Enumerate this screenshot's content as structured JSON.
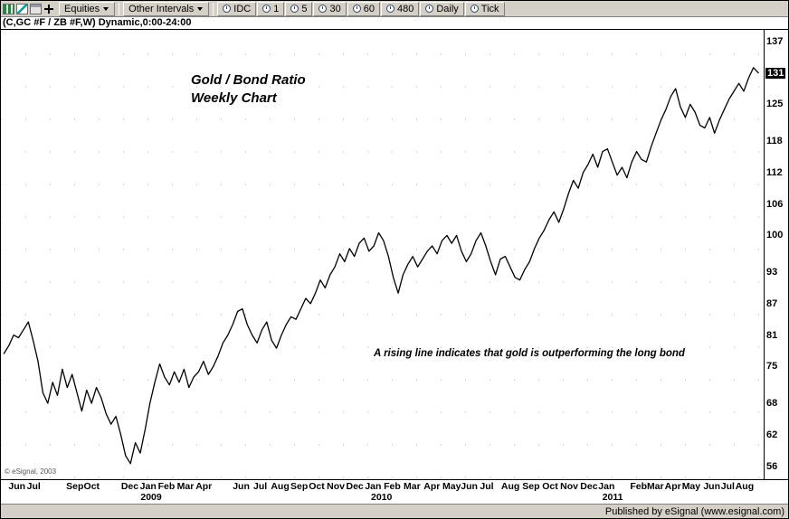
{
  "toolbar": {
    "left_icons": [
      "green-bars-chart-icon",
      "teal-line-chart-icon",
      "print-icon",
      "plus-crosshair-icon"
    ],
    "dropdowns": [
      {
        "label": "Equities"
      },
      {
        "label": "Other Intervals"
      }
    ],
    "intervals": [
      {
        "icon": "data-source-icon",
        "label": "IDC"
      },
      {
        "icon": "clock-icon",
        "label": "1"
      },
      {
        "icon": "clock-icon",
        "label": "5"
      },
      {
        "icon": "clock-icon",
        "label": "30"
      },
      {
        "icon": "clock-icon",
        "label": "60"
      },
      {
        "icon": "clock-icon",
        "label": "480"
      },
      {
        "icon": "clock-icon",
        "label": "Daily"
      },
      {
        "icon": "clock-icon",
        "label": "Tick"
      }
    ]
  },
  "status_bar": {
    "published": "Published by eSignal (www.esignal.com)"
  },
  "chart_data": {
    "type": "line",
    "symbol": "(C,GC #F / ZB #F,W) Dynamic,0:00-24:00",
    "title_lines": [
      "Gold / Bond Ratio",
      "Weekly Chart"
    ],
    "annotation": "A rising line indicates that gold is outperforming the long bond",
    "copyright": "© eSignal, 2003",
    "frequency": "weekly",
    "x_range": [
      "Jun 2008",
      "Aug 2011"
    ],
    "ylim": [
      54,
      139
    ],
    "grid": "dotted",
    "legend": "none",
    "line_color": "#000000",
    "y_ticks": [
      137,
      131,
      125,
      118,
      112,
      106,
      100,
      93,
      87,
      81,
      75,
      68,
      62,
      56
    ],
    "last_price": 131,
    "x_ticks": [
      {
        "label": "Jun",
        "pos": 0.021
      },
      {
        "label": "Jul",
        "pos": 0.043
      },
      {
        "label": "Sep",
        "pos": 0.097
      },
      {
        "label": "Oct",
        "pos": 0.119
      },
      {
        "label": "Dec",
        "pos": 0.169
      },
      {
        "label": "Jan",
        "pos": 0.193
      },
      {
        "label": "Feb",
        "pos": 0.217
      },
      {
        "label": "Mar",
        "pos": 0.242
      },
      {
        "label": "Apr",
        "pos": 0.266
      },
      {
        "label": "Jun",
        "pos": 0.315
      },
      {
        "label": "Jul",
        "pos": 0.34
      },
      {
        "label": "Aug",
        "pos": 0.366
      },
      {
        "label": "Sep",
        "pos": 0.391
      },
      {
        "label": "Oct",
        "pos": 0.414
      },
      {
        "label": "Nov",
        "pos": 0.439
      },
      {
        "label": "Dec",
        "pos": 0.464
      },
      {
        "label": "Jan",
        "pos": 0.488
      },
      {
        "label": "Feb",
        "pos": 0.513
      },
      {
        "label": "Mar",
        "pos": 0.539
      },
      {
        "label": "Apr",
        "pos": 0.565
      },
      {
        "label": "May",
        "pos": 0.591
      },
      {
        "label": "Jun",
        "pos": 0.614
      },
      {
        "label": "Jul",
        "pos": 0.637
      },
      {
        "label": "Aug",
        "pos": 0.668
      },
      {
        "label": "Sep",
        "pos": 0.695
      },
      {
        "label": "Oct",
        "pos": 0.72
      },
      {
        "label": "Nov",
        "pos": 0.745
      },
      {
        "label": "Dec",
        "pos": 0.771
      },
      {
        "label": "Jan",
        "pos": 0.794
      },
      {
        "label": "Feb",
        "pos": 0.836
      },
      {
        "label": "Mar",
        "pos": 0.858
      },
      {
        "label": "Apr",
        "pos": 0.881
      },
      {
        "label": "May",
        "pos": 0.905
      },
      {
        "label": "Jun",
        "pos": 0.932
      },
      {
        "label": "Jul",
        "pos": 0.953
      },
      {
        "label": "Aug",
        "pos": 0.975
      }
    ],
    "year_ticks": [
      {
        "label": "2009",
        "pos": 0.197
      },
      {
        "label": "2010",
        "pos": 0.499
      },
      {
        "label": "2011",
        "pos": 0.802
      }
    ],
    "values": [
      77.5,
      79,
      81,
      80.5,
      82,
      83.5,
      80,
      76,
      70,
      68,
      72,
      69.5,
      74.5,
      71,
      73.5,
      70,
      66.5,
      70.5,
      68,
      71,
      69,
      66,
      64,
      65.5,
      62,
      58,
      56.5,
      60.5,
      58.5,
      63,
      68,
      72,
      75.5,
      73,
      71.5,
      74,
      72,
      74.5,
      71,
      73,
      74,
      76,
      73.5,
      75,
      77,
      79.5,
      81,
      83,
      85.5,
      86,
      83,
      81,
      79.5,
      82,
      83.5,
      80,
      78.5,
      81,
      83,
      84.5,
      84,
      86,
      88,
      87,
      89,
      91.5,
      90,
      92.5,
      94,
      96.5,
      95,
      97.5,
      96,
      98.5,
      99.5,
      97,
      98,
      100.5,
      99,
      96,
      92,
      89,
      92.5,
      94.5,
      96,
      94,
      95.5,
      97,
      98,
      96.5,
      99,
      100,
      98.5,
      100,
      97,
      95,
      96.5,
      99,
      100.5,
      98,
      95,
      92.5,
      95.5,
      96,
      94,
      92,
      91.5,
      93.5,
      95,
      97.5,
      99.5,
      101,
      103,
      104.5,
      102.5,
      105,
      108,
      110.5,
      109,
      112,
      113.5,
      115.5,
      113,
      116,
      116.5,
      114,
      111.5,
      113,
      111,
      114,
      116,
      114.5,
      114,
      117,
      119.5,
      122,
      124,
      126.5,
      128,
      124.5,
      122.5,
      125,
      123.5,
      121,
      120.5,
      122.5,
      119.5,
      122,
      124,
      126,
      127.5,
      129,
      127.5,
      130,
      132,
      131
    ]
  }
}
